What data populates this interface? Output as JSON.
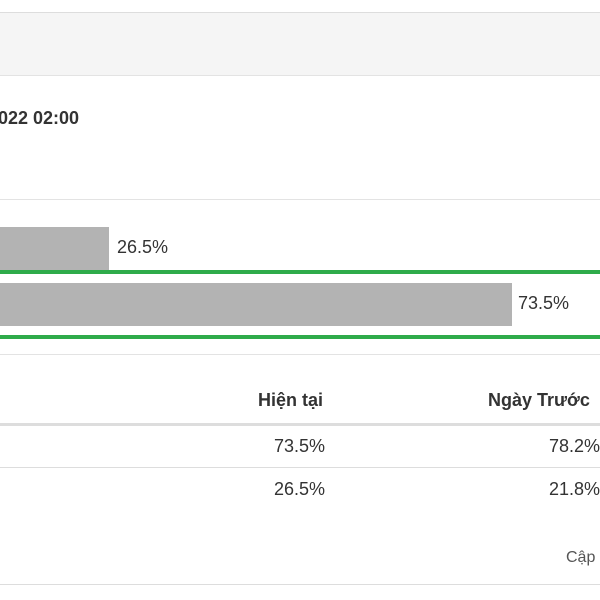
{
  "poll": {
    "timestamp": "022 02:00",
    "options": [
      {
        "value_label": "26.5%",
        "percent": 26.5,
        "highlighted": false
      },
      {
        "value_label": "73.5%",
        "percent": 73.5,
        "highlighted": true
      }
    ],
    "highlight_color": "#2eab4a",
    "bar_color": "#b3b3b3"
  },
  "table": {
    "headers": [
      "Hiện tại",
      "Ngày Trước"
    ],
    "rows": [
      [
        "73.5%",
        "78.2%"
      ],
      [
        "26.5%",
        "21.8%"
      ]
    ]
  },
  "footer": {
    "updated_label": "Cập"
  }
}
